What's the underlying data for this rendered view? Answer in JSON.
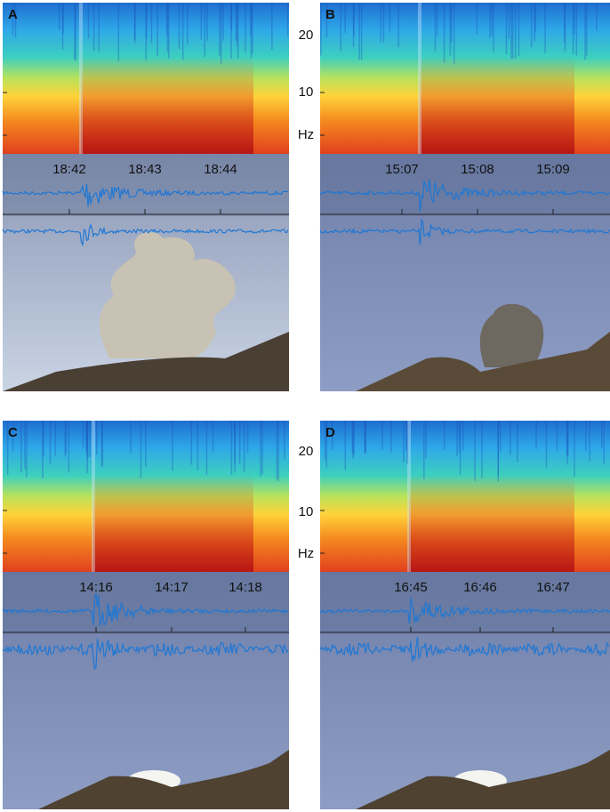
{
  "spectrogram_axis": {
    "ticks": [
      "20",
      "10"
    ],
    "unit": "Hz"
  },
  "panels": [
    {
      "label": "A",
      "times": [
        "18:42",
        "18:43",
        "18:44"
      ]
    },
    {
      "label": "B",
      "times": [
        "15:07",
        "15:08",
        "15:09"
      ]
    },
    {
      "label": "C",
      "times": [
        "14:16",
        "14:17",
        "14:18"
      ]
    },
    {
      "label": "D",
      "times": [
        "16:45",
        "16:46",
        "16:47"
      ]
    }
  ]
}
